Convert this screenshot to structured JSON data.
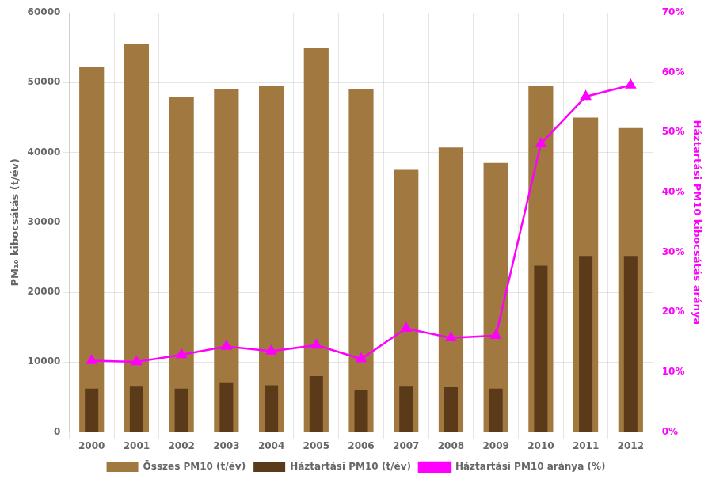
{
  "chart_data": {
    "type": "bar",
    "categories": [
      "2000",
      "2001",
      "2002",
      "2003",
      "2004",
      "2005",
      "2006",
      "2007",
      "2008",
      "2009",
      "2010",
      "2011",
      "2012"
    ],
    "series": [
      {
        "name": "Összes PM10 (t/év)",
        "type": "bar",
        "color": "#a07840",
        "values": [
          52200,
          55500,
          48000,
          49000,
          49500,
          55000,
          49000,
          37500,
          40700,
          38500,
          49500,
          45000,
          43500
        ]
      },
      {
        "name": "Háztartási PM10 (t/év)",
        "type": "bar",
        "color": "#5a3a18",
        "values": [
          6200,
          6500,
          6200,
          7000,
          6700,
          8000,
          6000,
          6500,
          6400,
          6200,
          23800,
          25200,
          25200
        ]
      },
      {
        "name": "Háztartási PM10 aránya (%)",
        "type": "line",
        "axis": "y2",
        "color": "#ff00ff",
        "marker": "triangle",
        "values": [
          0.119,
          0.117,
          0.129,
          0.143,
          0.135,
          0.145,
          0.122,
          0.173,
          0.157,
          0.161,
          0.481,
          0.56,
          0.579
        ]
      }
    ],
    "ylabel": "PM₁₀ kibocsátás (t/év)",
    "y2label": "Háztartási PM10 kibocsátás aránya",
    "ylim": [
      0,
      60000
    ],
    "yticks": [
      0,
      10000,
      20000,
      30000,
      40000,
      50000,
      60000
    ],
    "y2lim": [
      0,
      0.7
    ],
    "y2ticks": [
      {
        "value": 0,
        "label": "0%"
      },
      {
        "value": 0.1,
        "label": "10%"
      },
      {
        "value": 0.2,
        "label": "20%"
      },
      {
        "value": 0.3,
        "label": "30%"
      },
      {
        "value": 0.4,
        "label": "40%"
      },
      {
        "value": 0.5,
        "label": "50%"
      },
      {
        "value": 0.6,
        "label": "60%"
      },
      {
        "value": 0.7,
        "label": "70%"
      }
    ],
    "grid": true,
    "legend": "bottom"
  }
}
